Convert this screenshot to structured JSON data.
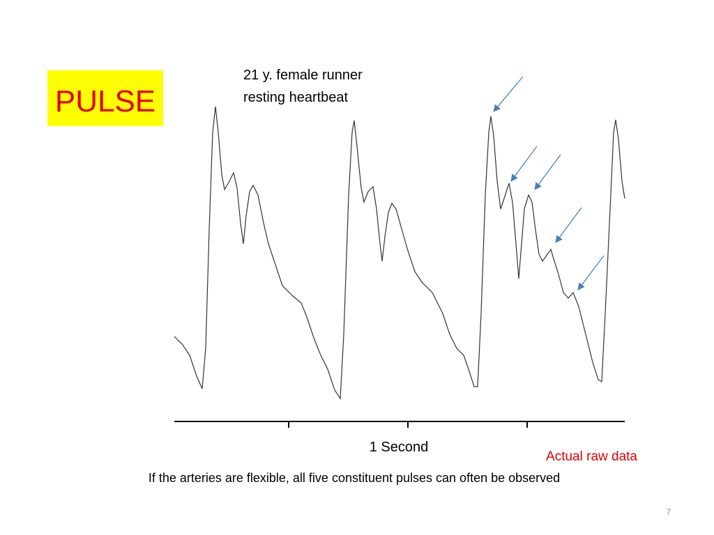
{
  "title": "PULSE",
  "figure": {
    "caption_lines": [
      "21 y. female runner",
      "resting heartbeat"
    ],
    "scale_label": "1 Second",
    "note": "Actual raw data"
  },
  "caption": "If the arteries are flexible, all five constituent pulses can often be observed",
  "page_number": "7"
}
